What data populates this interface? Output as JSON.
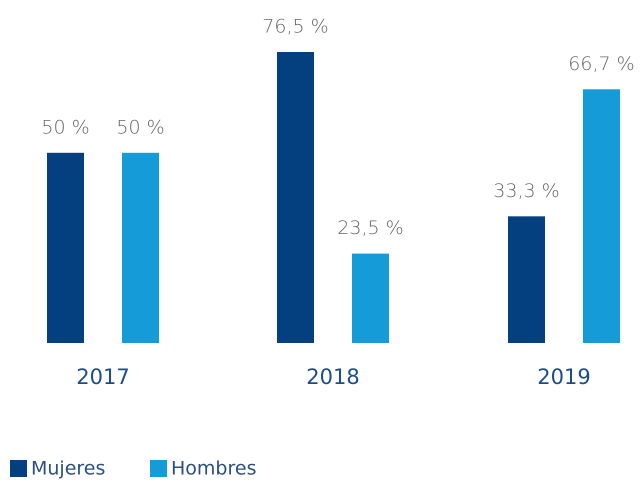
{
  "chart_data": {
    "type": "bar",
    "categories": [
      "2017",
      "2018",
      "2019"
    ],
    "series": [
      {
        "name": "Mujeres",
        "color": "#043f80",
        "values": [
          50,
          76.5,
          33.3
        ],
        "value_labels": [
          "50 %",
          "76,5 %",
          "33,3 %"
        ]
      },
      {
        "name": "Hombres",
        "color": "#149bd8",
        "values": [
          50,
          23.5,
          66.7
        ],
        "value_labels": [
          "50 %",
          "23,5 %",
          "66,7 %"
        ]
      }
    ]
  }
}
